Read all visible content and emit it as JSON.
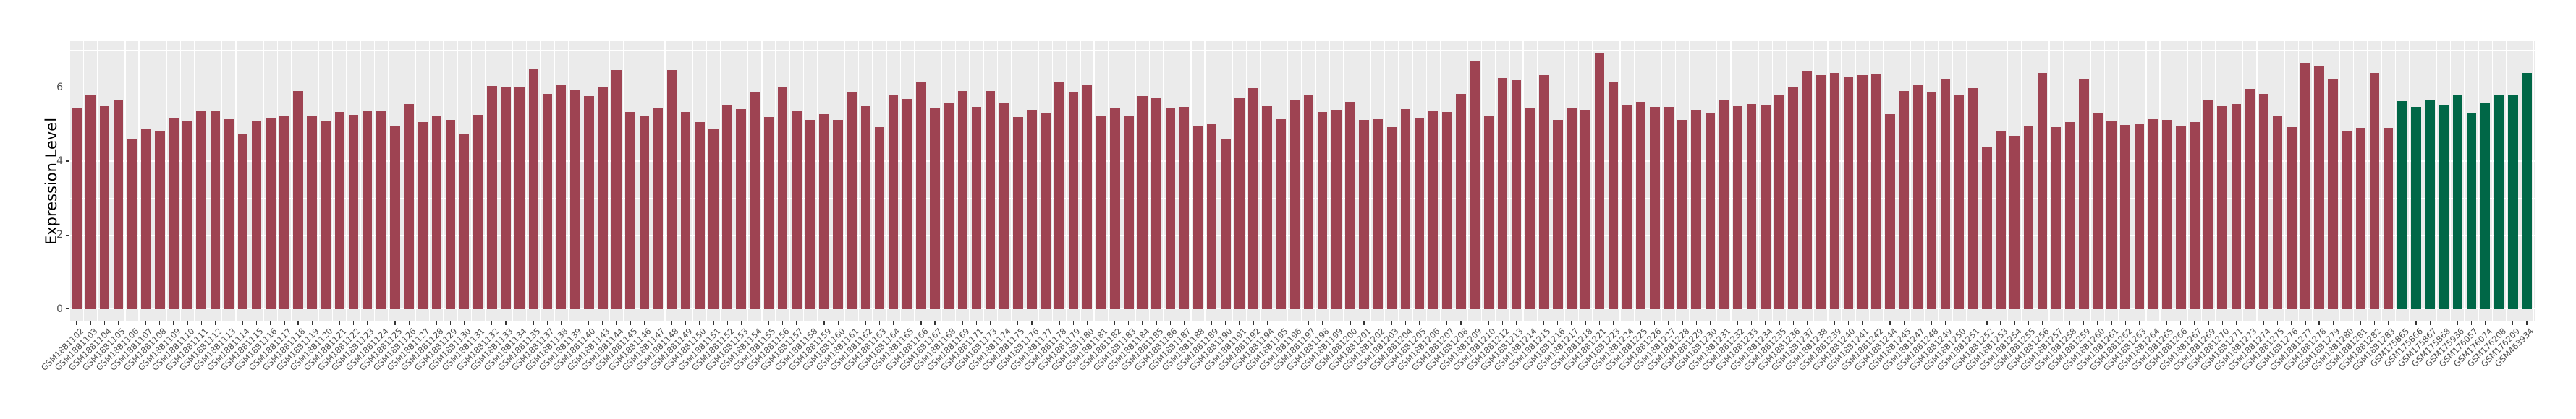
{
  "chart_data": {
    "type": "bar",
    "title": "",
    "xlabel": "",
    "ylabel": "Expression Level",
    "ylim": [
      0,
      7.24
    ],
    "yticks": [
      0,
      2,
      4,
      6
    ],
    "yminor": [
      1,
      3,
      5,
      7
    ],
    "grid": true,
    "legend_position": "none",
    "panel_background": "#EBEBEB",
    "gridline_color": "#FFFFFF",
    "axis_text_color": "#4D4D4D",
    "axis_title_color": "#000000",
    "palette": {
      "red": "#9E4352",
      "green": "#006747"
    },
    "green_start_index": 168,
    "categories": [
      "GSM1881102",
      "GSM1881103",
      "GSM1881104",
      "GSM1881105",
      "GSM1881106",
      "GSM1881107",
      "GSM1881108",
      "GSM1881109",
      "GSM1881110",
      "GSM1881111",
      "GSM1881112",
      "GSM1881113",
      "GSM1881114",
      "GSM1881115",
      "GSM1881116",
      "GSM1881117",
      "GSM1881118",
      "GSM1881119",
      "GSM1881120",
      "GSM1881121",
      "GSM1881122",
      "GSM1881123",
      "GSM1881124",
      "GSM1881125",
      "GSM1881126",
      "GSM1881127",
      "GSM1881128",
      "GSM1881129",
      "GSM1881130",
      "GSM1881131",
      "GSM1881132",
      "GSM1881133",
      "GSM1881134",
      "GSM1881135",
      "GSM1881137",
      "GSM1881138",
      "GSM1881139",
      "GSM1881140",
      "GSM1881143",
      "GSM1881144",
      "GSM1881145",
      "GSM1881146",
      "GSM1881147",
      "GSM1881148",
      "GSM1881149",
      "GSM1881150",
      "GSM1881151",
      "GSM1881152",
      "GSM1881153",
      "GSM1881154",
      "GSM1881155",
      "GSM1881156",
      "GSM1881157",
      "GSM1881158",
      "GSM1881159",
      "GSM1881160",
      "GSM1881161",
      "GSM1881162",
      "GSM1881163",
      "GSM1881164",
      "GSM1881165",
      "GSM1881166",
      "GSM1881167",
      "GSM1881168",
      "GSM1881169",
      "GSM1881171",
      "GSM1881173",
      "GSM1881174",
      "GSM1881175",
      "GSM1881176",
      "GSM1881177",
      "GSM1881178",
      "GSM1881179",
      "GSM1881180",
      "GSM1881181",
      "GSM1881182",
      "GSM1881183",
      "GSM1881184",
      "GSM1881185",
      "GSM1881186",
      "GSM1881187",
      "GSM1881188",
      "GSM1881189",
      "GSM1881190",
      "GSM1881191",
      "GSM1881192",
      "GSM1881194",
      "GSM1881195",
      "GSM1881196",
      "GSM1881197",
      "GSM1881198",
      "GSM1881199",
      "GSM1881200",
      "GSM1881201",
      "GSM1881202",
      "GSM1881203",
      "GSM1881204",
      "GSM1881205",
      "GSM1881206",
      "GSM1881207",
      "GSM1881208",
      "GSM1881209",
      "GSM1881210",
      "GSM1881212",
      "GSM1881213",
      "GSM1881214",
      "GSM1881215",
      "GSM1881216",
      "GSM1881217",
      "GSM1881218",
      "GSM1881221",
      "GSM1881223",
      "GSM1881224",
      "GSM1881225",
      "GSM1881226",
      "GSM1881227",
      "GSM1881228",
      "GSM1881229",
      "GSM1881230",
      "GSM1881231",
      "GSM1881232",
      "GSM1881233",
      "GSM1881234",
      "GSM1881235",
      "GSM1881236",
      "GSM1881237",
      "GSM1881238",
      "GSM1881239",
      "GSM1881240",
      "GSM1881241",
      "GSM1881242",
      "GSM1881244",
      "GSM1881245",
      "GSM1881247",
      "GSM1881248",
      "GSM1881249",
      "GSM1881250",
      "GSM1881251",
      "GSM1881252",
      "GSM1881253",
      "GSM1881254",
      "GSM1881255",
      "GSM1881256",
      "GSM1881257",
      "GSM1881258",
      "GSM1881259",
      "GSM1881260",
      "GSM1881261",
      "GSM1881262",
      "GSM1881263",
      "GSM1881264",
      "GSM1881265",
      "GSM1881266",
      "GSM1881267",
      "GSM1881269",
      "GSM1881270",
      "GSM1881271",
      "GSM1881273",
      "GSM1881274",
      "GSM1881275",
      "GSM1881276",
      "GSM1881277",
      "GSM1881278",
      "GSM1881279",
      "GSM1881280",
      "GSM1881281",
      "GSM1881282",
      "GSM1881283",
      "GSM175865",
      "GSM175866",
      "GSM175867",
      "GSM175868",
      "GSM175936",
      "GSM176057",
      "GSM176074",
      "GSM176208",
      "GSM176209",
      "GSM463934"
    ],
    "values": [
      5.45,
      5.78,
      5.48,
      5.64,
      4.59,
      4.88,
      4.83,
      5.15,
      5.08,
      5.37,
      5.37,
      5.13,
      4.73,
      5.09,
      5.17,
      5.23,
      5.9,
      5.24,
      5.09,
      5.33,
      5.25,
      5.37,
      5.37,
      4.93,
      5.54,
      5.05,
      5.22,
      5.11,
      4.73,
      5.25,
      6.03,
      6.0,
      5.99,
      6.49,
      5.82,
      6.08,
      5.92,
      5.75,
      6.02,
      6.47,
      5.33,
      5.21,
      5.45,
      6.47,
      5.33,
      5.05,
      4.85,
      5.5,
      5.41,
      5.87,
      5.19,
      6.02,
      5.36,
      5.11,
      5.26,
      5.11,
      5.85,
      5.48,
      4.91,
      5.78,
      5.68,
      6.14,
      5.43,
      5.59,
      5.9,
      5.46,
      5.9,
      5.56,
      5.19,
      5.38,
      5.3,
      6.12,
      5.87,
      6.07,
      5.23,
      5.43,
      5.22,
      5.75,
      5.71,
      5.43,
      5.46,
      4.94,
      5.0,
      4.58,
      5.69,
      5.97,
      5.48,
      5.13,
      5.67,
      5.8,
      5.32,
      5.38,
      5.6,
      5.11,
      5.13,
      4.91,
      5.41,
      5.17,
      5.34,
      5.33,
      5.82,
      6.71,
      5.24,
      6.24,
      6.19,
      5.44,
      6.33,
      5.11,
      5.43,
      5.38,
      6.93,
      6.14,
      5.52,
      5.6,
      5.46,
      5.46,
      5.11,
      5.38,
      5.3,
      5.64,
      5.49,
      5.54,
      5.5,
      5.77,
      6.01,
      6.44,
      6.32,
      6.38,
      6.28,
      6.32,
      6.36,
      5.26,
      5.89,
      6.07,
      5.85,
      6.23,
      5.77,
      5.97,
      4.38,
      4.81,
      4.68,
      4.93,
      6.38,
      4.91,
      5.05,
      6.21,
      5.28,
      5.1,
      4.97,
      5.0,
      5.14,
      5.12,
      4.96,
      5.06,
      5.64,
      5.49,
      5.54,
      5.95,
      5.82,
      5.21,
      4.91,
      6.66,
      6.55,
      6.22,
      4.83,
      4.89,
      6.38,
      4.89,
      5.62,
      5.46,
      5.67,
      5.52,
      5.8,
      5.28,
      5.56,
      5.78,
      5.78,
      6.38
    ]
  }
}
